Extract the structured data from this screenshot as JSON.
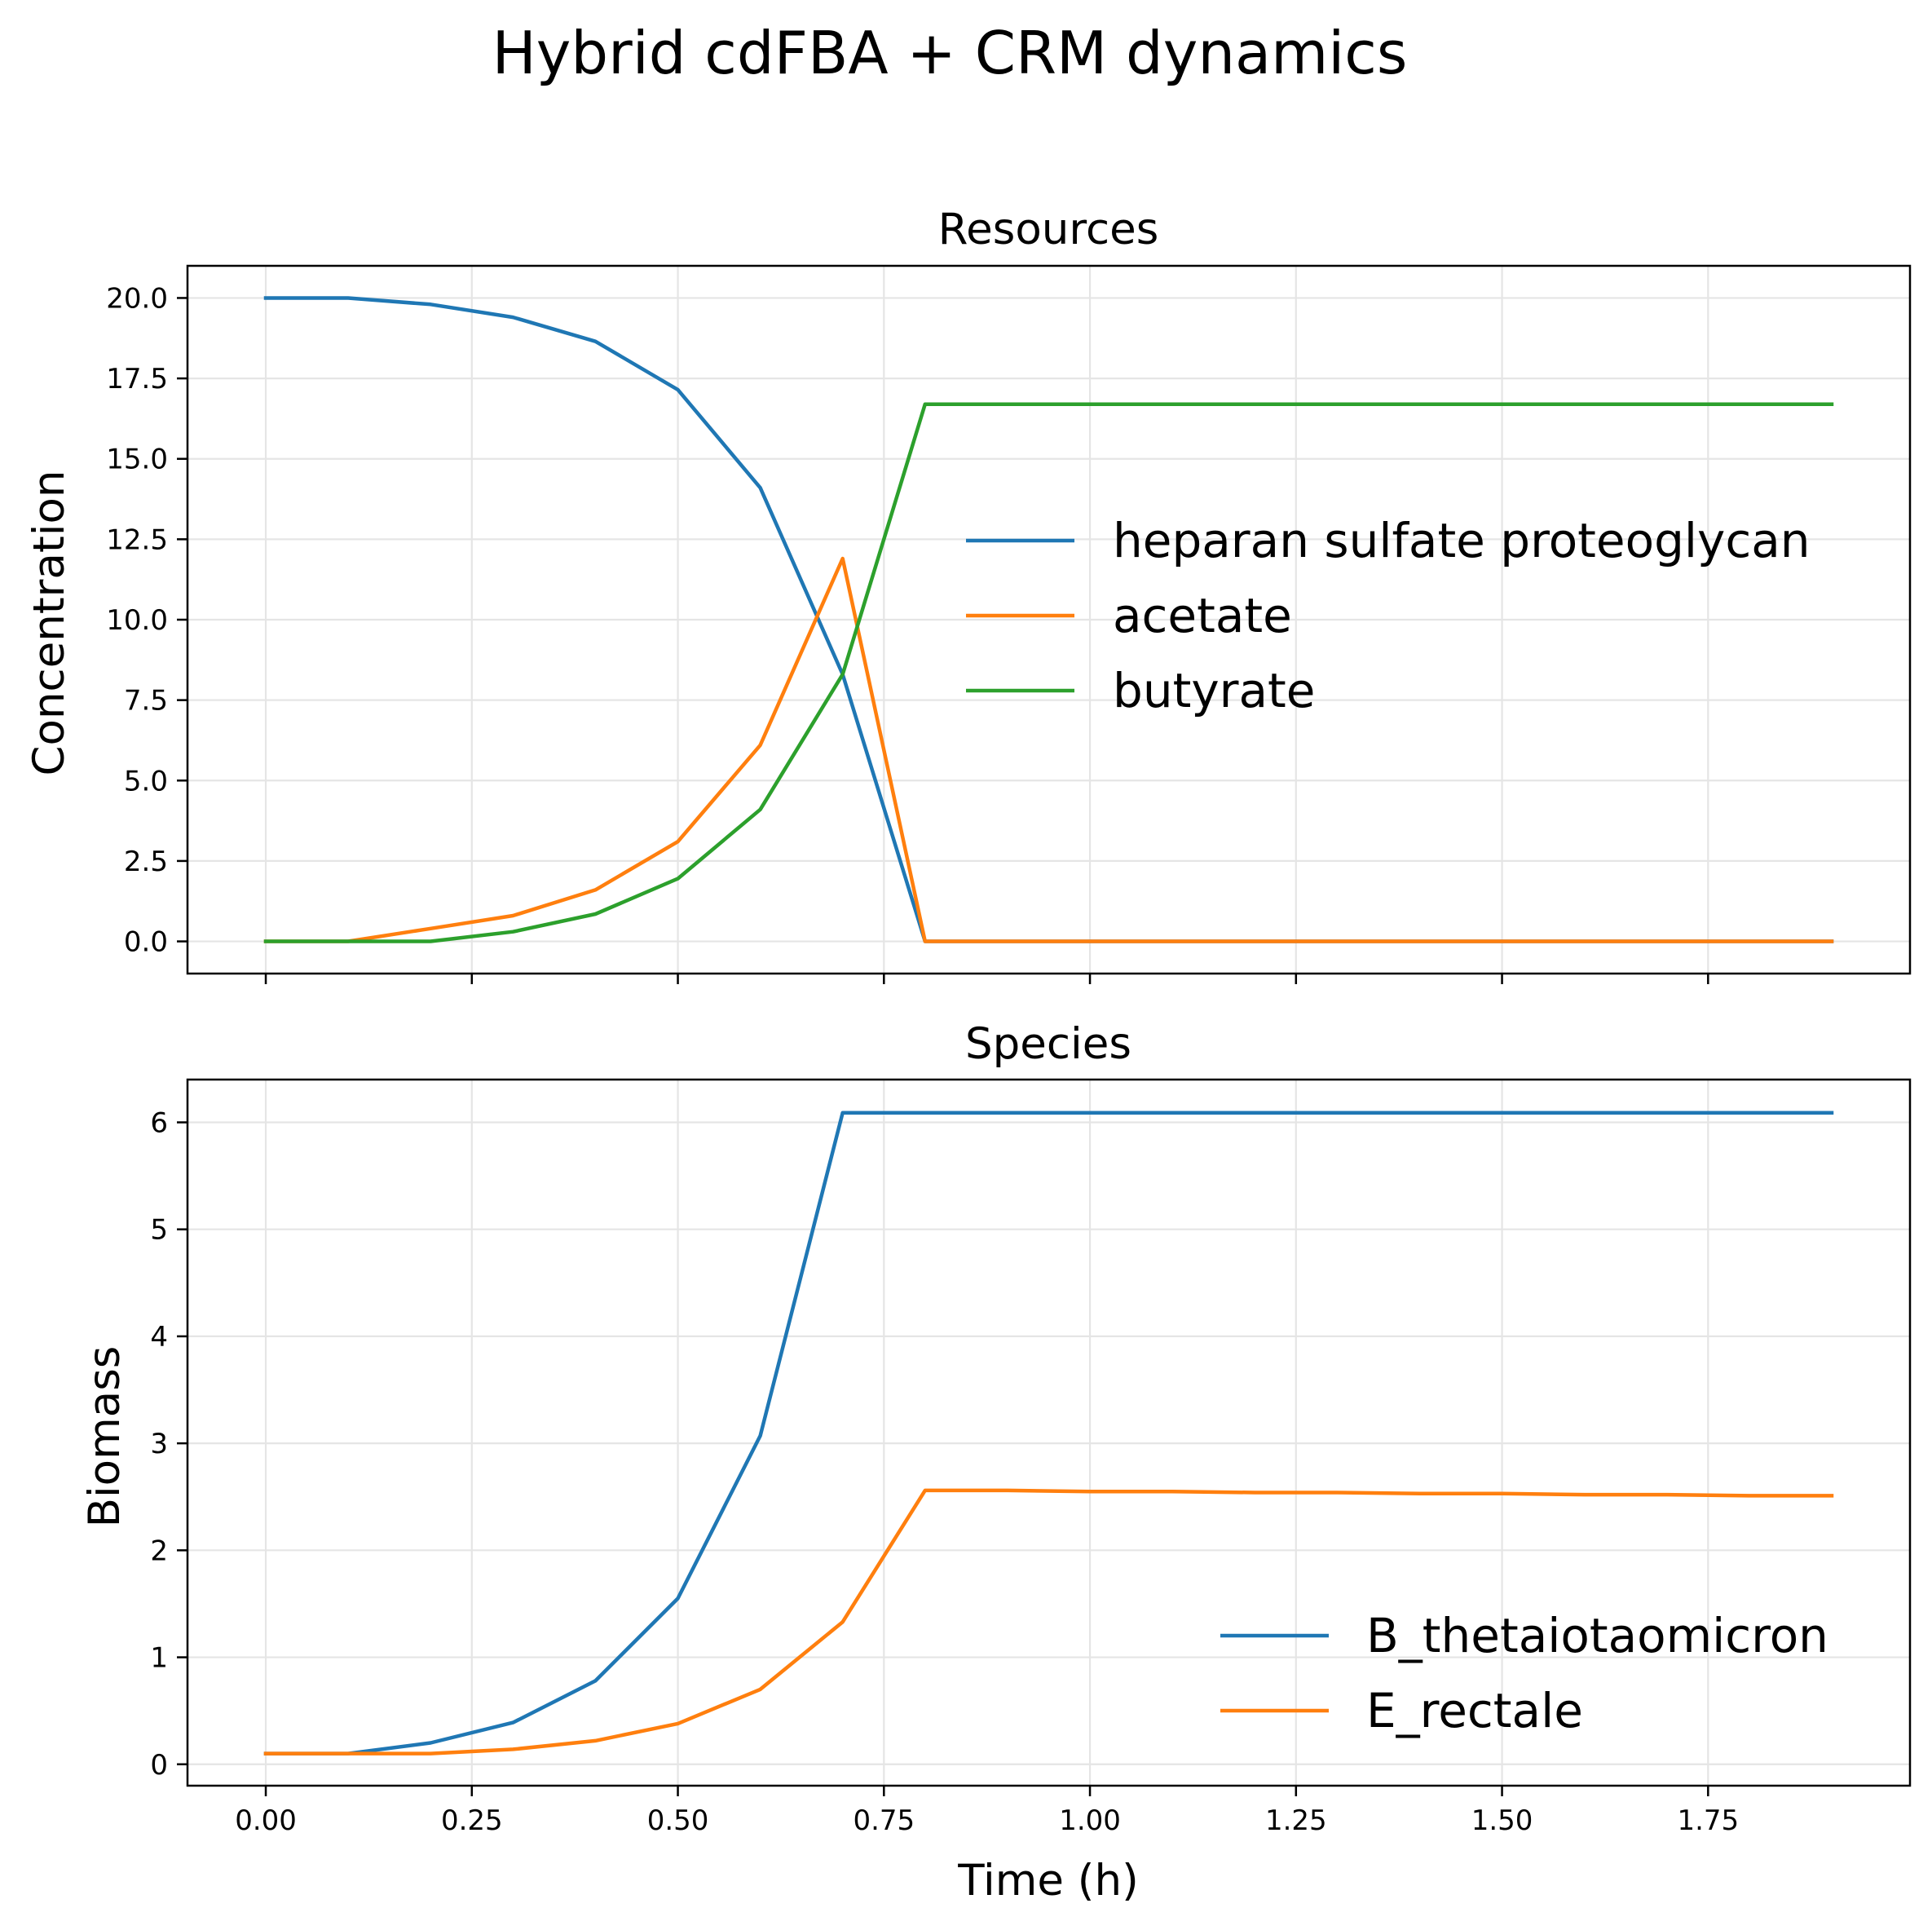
{
  "figure": {
    "title": "Hybrid cdFBA + CRM dynamics"
  },
  "chart_data": [
    {
      "type": "line",
      "title": "Resources",
      "xlabel": "",
      "ylabel": "Concentration",
      "xlim": [
        -0.095,
        1.995
      ],
      "ylim": [
        -1.0,
        21.0
      ],
      "xticks": [
        0.0,
        0.25,
        0.5,
        0.75,
        1.0,
        1.25,
        1.5,
        1.75
      ],
      "xtick_labels": [
        "",
        "",
        "",
        "",
        "",
        "",
        "",
        ""
      ],
      "yticks": [
        0.0,
        2.5,
        5.0,
        7.5,
        10.0,
        12.5,
        15.0,
        17.5,
        20.0
      ],
      "ytick_labels": [
        "0.0",
        "2.5",
        "5.0",
        "7.5",
        "10.0",
        "12.5",
        "15.0",
        "17.5",
        "20.0"
      ],
      "grid": true,
      "legend_position": "center-right",
      "x": [
        0.0,
        0.1,
        0.2,
        0.3,
        0.4,
        0.5,
        0.6,
        0.7,
        0.8,
        0.9,
        1.0,
        1.1,
        1.2,
        1.3,
        1.4,
        1.5,
        1.6,
        1.7,
        1.8,
        1.9
      ],
      "series": [
        {
          "name": "heparan sulfate proteoglycan",
          "color": "#1f77b4",
          "values": [
            20.0,
            20.0,
            19.8,
            19.4,
            18.65,
            17.15,
            14.1,
            8.3,
            0.0,
            0.0,
            0.0,
            0.0,
            0.0,
            0.0,
            0.0,
            0.0,
            0.0,
            0.0,
            0.0,
            0.0
          ]
        },
        {
          "name": "acetate",
          "color": "#ff7f0e",
          "values": [
            0.0,
            0.0,
            0.4,
            0.8,
            1.6,
            3.1,
            6.1,
            11.9,
            0.0,
            0.0,
            0.0,
            0.0,
            0.0,
            0.0,
            0.0,
            0.0,
            0.0,
            0.0,
            0.0,
            0.0
          ]
        },
        {
          "name": "butyrate",
          "color": "#2ca02c",
          "values": [
            0.0,
            0.0,
            0.0,
            0.3,
            0.85,
            1.95,
            4.1,
            8.3,
            16.7,
            16.7,
            16.7,
            16.7,
            16.7,
            16.7,
            16.7,
            16.7,
            16.7,
            16.7,
            16.7,
            16.7
          ]
        }
      ]
    },
    {
      "type": "line",
      "title": "Species",
      "xlabel": "Time (h)",
      "ylabel": "Biomass",
      "xlim": [
        -0.095,
        1.995
      ],
      "ylim": [
        -0.2,
        6.4
      ],
      "xticks": [
        0.0,
        0.25,
        0.5,
        0.75,
        1.0,
        1.25,
        1.5,
        1.75
      ],
      "xtick_labels": [
        "0.00",
        "0.25",
        "0.50",
        "0.75",
        "1.00",
        "1.25",
        "1.50",
        "1.75"
      ],
      "yticks": [
        0,
        1,
        2,
        3,
        4,
        5,
        6
      ],
      "ytick_labels": [
        "0",
        "1",
        "2",
        "3",
        "4",
        "5",
        "6"
      ],
      "grid": true,
      "legend_position": "lower-right",
      "x": [
        0.0,
        0.1,
        0.2,
        0.3,
        0.4,
        0.5,
        0.6,
        0.7,
        0.8,
        0.9,
        1.0,
        1.1,
        1.2,
        1.3,
        1.4,
        1.5,
        1.6,
        1.7,
        1.8,
        1.9
      ],
      "series": [
        {
          "name": "B_thetaiotaomicron",
          "color": "#1f77b4",
          "values": [
            0.1,
            0.1,
            0.2,
            0.39,
            0.78,
            1.55,
            3.07,
            6.09,
            6.09,
            6.09,
            6.09,
            6.09,
            6.09,
            6.09,
            6.09,
            6.09,
            6.09,
            6.09,
            6.09,
            6.09
          ]
        },
        {
          "name": "E_rectale",
          "color": "#ff7f0e",
          "values": [
            0.1,
            0.1,
            0.1,
            0.14,
            0.22,
            0.38,
            0.7,
            1.33,
            2.56,
            2.56,
            2.55,
            2.55,
            2.54,
            2.54,
            2.53,
            2.53,
            2.52,
            2.52,
            2.51,
            2.51
          ]
        }
      ]
    }
  ]
}
